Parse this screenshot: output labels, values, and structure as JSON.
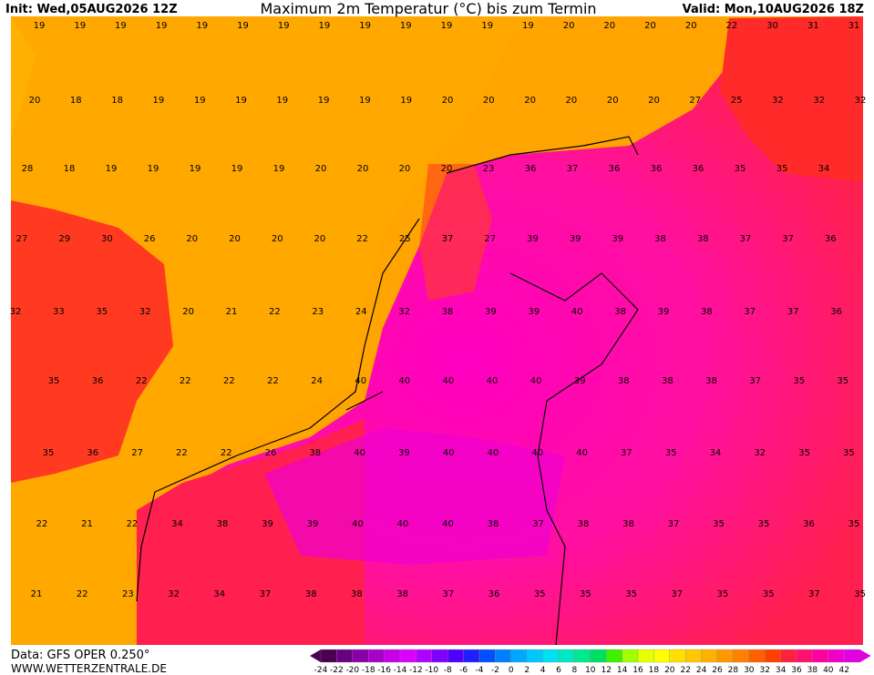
{
  "header": {
    "init": "Init: Wed,05AUG2026 12Z",
    "title": "Maximum 2m Temperatur (°C) bis zum Termin",
    "valid": "Valid: Mon,10AUG2026 18Z"
  },
  "footer": {
    "data": "Data: GFS OPER 0.250°",
    "site": "WWW.WETTERZENTRALE.DE"
  },
  "legend": {
    "ticks": [
      -24,
      -22,
      -20,
      -18,
      -16,
      -14,
      -12,
      -10,
      -8,
      -6,
      -4,
      -2,
      0,
      2,
      4,
      6,
      8,
      10,
      12,
      14,
      16,
      18,
      20,
      22,
      24,
      26,
      28,
      30,
      32,
      34,
      36,
      38,
      40,
      42
    ],
    "colors": [
      "#4b0050",
      "#6a0080",
      "#8b00a8",
      "#a800c8",
      "#c800e8",
      "#dc00ff",
      "#b000ff",
      "#8000ff",
      "#5000ff",
      "#2020ff",
      "#0050ff",
      "#0080ff",
      "#00a8ff",
      "#00c8ff",
      "#00e0f0",
      "#00e8c0",
      "#00e890",
      "#00e060",
      "#40f000",
      "#a0ff00",
      "#e8ff00",
      "#ffff00",
      "#ffe000",
      "#ffc800",
      "#ffb000",
      "#ff9800",
      "#ff8000",
      "#ff6000",
      "#ff4000",
      "#ff2040",
      "#ff1070",
      "#ff00a0",
      "#f000c8",
      "#e000e0"
    ]
  },
  "labels": [
    [
      19,
      19,
      19,
      19,
      19,
      19,
      19,
      19,
      19,
      19,
      19,
      19,
      19,
      20,
      20,
      20,
      20,
      22,
      30,
      31,
      31
    ],
    [
      20,
      18,
      18,
      19,
      19,
      19,
      19,
      19,
      19,
      19,
      20,
      20,
      20,
      20,
      20,
      20,
      27,
      25,
      32,
      32,
      32
    ],
    [
      28,
      18,
      19,
      19,
      19,
      19,
      19,
      20,
      20,
      20,
      20,
      23,
      36,
      37,
      36,
      36,
      36,
      35,
      35,
      34
    ],
    [
      27,
      29,
      30,
      26,
      20,
      20,
      20,
      20,
      22,
      25,
      37,
      27,
      39,
      39,
      39,
      38,
      38,
      37,
      37,
      36
    ],
    [
      32,
      33,
      35,
      32,
      20,
      21,
      22,
      23,
      24,
      32,
      38,
      39,
      39,
      40,
      38,
      39,
      38,
      37,
      37,
      36
    ],
    [
      35,
      36,
      22,
      22,
      22,
      22,
      24,
      40,
      40,
      40,
      40,
      40,
      39,
      38,
      38,
      38,
      37,
      35,
      35
    ],
    [
      35,
      36,
      27,
      22,
      22,
      26,
      38,
      40,
      39,
      40,
      40,
      40,
      40,
      37,
      35,
      34,
      32,
      35,
      35
    ],
    [
      22,
      21,
      22,
      34,
      38,
      39,
      39,
      40,
      40,
      40,
      38,
      37,
      38,
      38,
      37,
      35,
      35,
      36,
      35
    ],
    [
      21,
      22,
      23,
      32,
      34,
      37,
      38,
      38,
      38,
      37,
      36,
      35,
      35,
      35,
      37,
      35,
      35,
      37,
      35
    ]
  ]
}
